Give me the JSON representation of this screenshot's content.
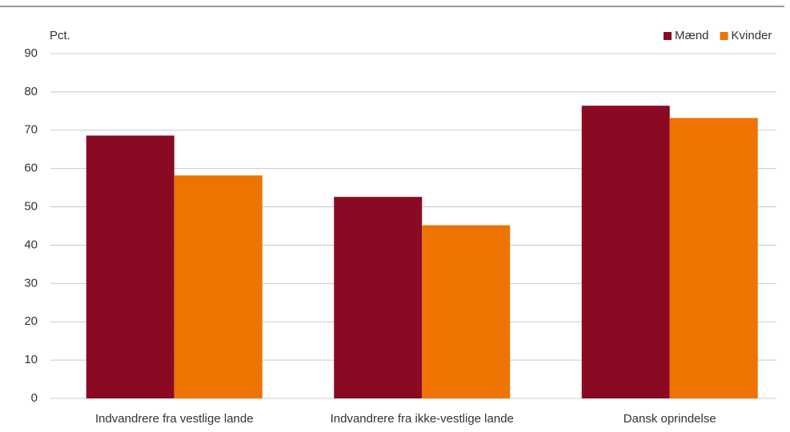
{
  "chart_data": {
    "type": "bar",
    "y_axis_label": "Pct.",
    "categories": [
      "Indvandrere fra vestlige lande",
      "Indvandrere fra ikke-vestlige lande",
      "Dansk oprindelse"
    ],
    "series": [
      {
        "name": "Mænd",
        "color": "#8b0a23",
        "values": [
          68.6,
          52.6,
          76.4
        ]
      },
      {
        "name": "Kvinder",
        "color": "#ef7300",
        "values": [
          58.2,
          45.2,
          73.2
        ]
      }
    ],
    "ylim": [
      0,
      90
    ],
    "yticks": [
      0,
      10,
      20,
      30,
      40,
      50,
      60,
      70,
      80,
      90
    ],
    "grid": true,
    "legend": "top-right"
  }
}
